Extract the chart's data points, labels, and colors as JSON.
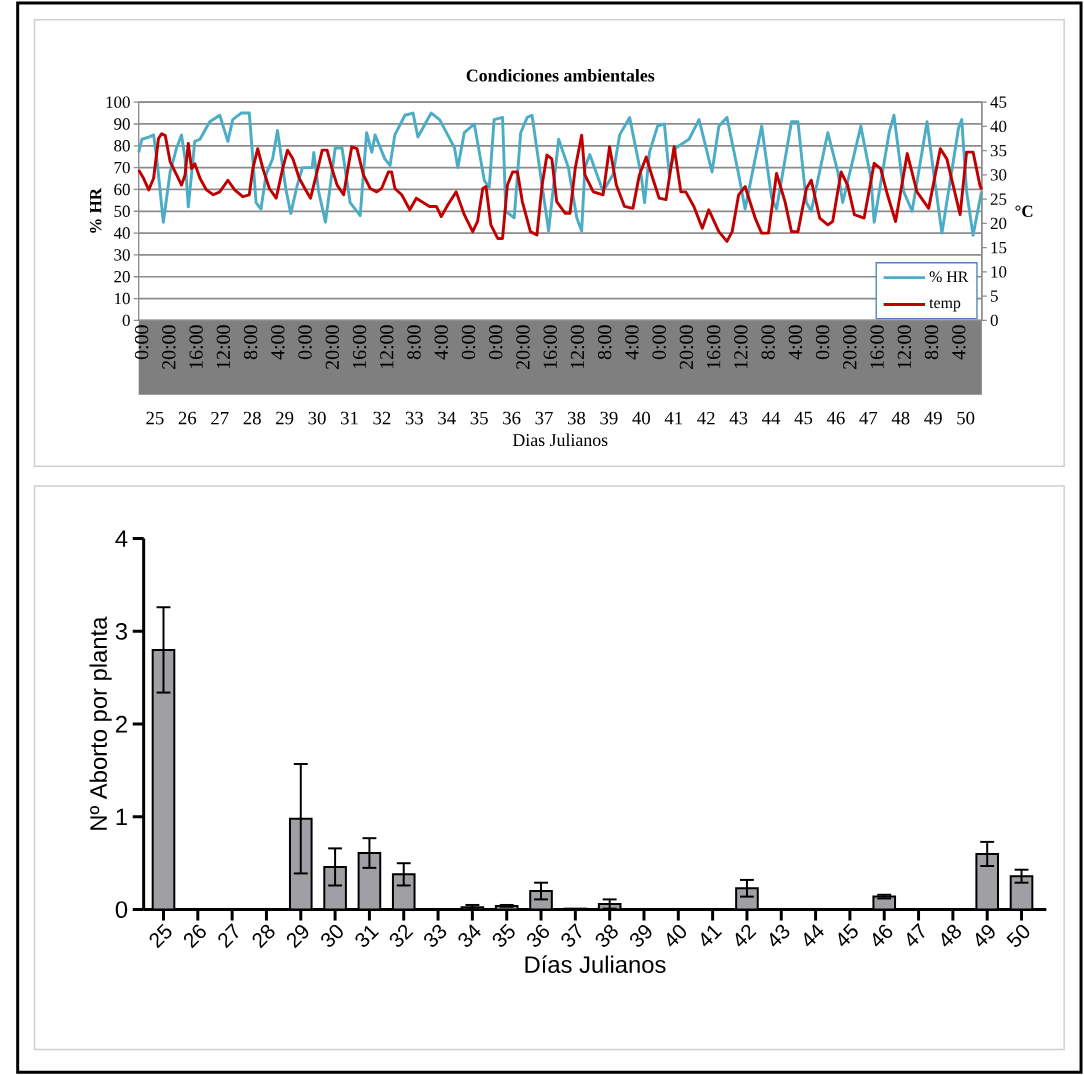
{
  "chart_data": [
    {
      "type": "line",
      "title": "Condiciones ambientales",
      "xlabel": "Dias Julianos",
      "ylabel": "% HR",
      "y2label": "°C",
      "xlim": [
        24.5,
        50.5
      ],
      "xticks": [
        25,
        26,
        27,
        28,
        29,
        30,
        31,
        32,
        33,
        34,
        35,
        36,
        37,
        38,
        39,
        40,
        41,
        42,
        43,
        44,
        45,
        46,
        47,
        48,
        49,
        50
      ],
      "annotations": [
        "0:00",
        "20:00",
        "16:00",
        "12:00",
        "8:00",
        "4:00",
        "0:00",
        "20:00",
        "16:00",
        "12:00",
        "8:00",
        "4:00",
        "0:00",
        "0:00",
        "20:00",
        "16:00",
        "12:00",
        "8:00",
        "4:00",
        "0:00",
        "20:00",
        "16:00",
        "12:00",
        "8:00",
        "4:00",
        "0:00",
        "20:00",
        "16:00",
        "12:00",
        "8:00",
        "4:00"
      ],
      "ylim": [
        0,
        100
      ],
      "yticks": [
        0,
        10,
        20,
        30,
        40,
        50,
        60,
        70,
        80,
        90,
        100
      ],
      "y2lim": [
        0,
        45
      ],
      "y2ticks": [
        0,
        5,
        10,
        15,
        20,
        25,
        30,
        35,
        40,
        45
      ],
      "grid": "y",
      "legend": "bottom right",
      "series": [
        {
          "name": "% HR",
          "color": "#4bacc6",
          "x": [
            24.5,
            24.6,
            24.81,
            24.96,
            25.06,
            25.26,
            25.47,
            25.67,
            25.82,
            25.93,
            26.03,
            26.23,
            26.39,
            26.69,
            27.0,
            27.25,
            27.4,
            27.66,
            27.91,
            28.02,
            28.12,
            28.27,
            28.43,
            28.63,
            28.78,
            29.04,
            29.19,
            29.39,
            29.55,
            29.85,
            29.9,
            30.05,
            30.26,
            30.56,
            30.77,
            31.02,
            31.33,
            31.53,
            31.69,
            31.79,
            32.09,
            32.25,
            32.4,
            32.71,
            32.96,
            33.11,
            33.52,
            33.78,
            34.03,
            34.24,
            34.34,
            34.54,
            34.85,
            35.16,
            35.31,
            35.46,
            35.72,
            35.82,
            36.08,
            36.28,
            36.48,
            36.63,
            36.89,
            37.14,
            37.45,
            37.75,
            38.01,
            38.16,
            38.26,
            38.41,
            38.82,
            39.13,
            39.33,
            39.64,
            39.99,
            40.1,
            40.25,
            40.5,
            40.71,
            40.86,
            41.06,
            41.47,
            41.78,
            41.98,
            42.18,
            42.39,
            42.64,
            43.0,
            43.2,
            43.71,
            44.02,
            44.17,
            44.63,
            44.83,
            45.09,
            45.24,
            45.75,
            46.06,
            46.21,
            46.77,
            47.08,
            47.18,
            47.64,
            47.79,
            48.09,
            48.35,
            48.81,
            49.01,
            49.27,
            49.78,
            49.88,
            50.03,
            50.23,
            50.49
          ],
          "values": [
            77,
            83,
            84,
            85,
            74,
            45,
            68,
            79,
            85,
            74,
            52,
            82,
            83,
            91,
            94,
            82,
            92,
            95,
            95,
            74,
            54,
            51,
            67,
            74,
            87,
            60,
            49,
            62,
            70,
            70,
            77,
            59,
            45,
            79,
            79,
            54,
            48,
            86,
            77,
            85,
            74,
            71,
            85,
            94,
            95,
            84,
            95,
            92,
            85,
            79,
            70,
            86,
            90,
            64,
            61,
            92,
            93,
            50,
            47,
            86,
            93,
            94,
            67,
            41,
            83,
            70,
            47,
            41,
            70,
            76,
            59,
            67,
            85,
            93,
            67,
            54,
            77,
            89,
            90,
            67,
            79,
            83,
            92,
            80,
            68,
            89,
            93,
            67,
            51,
            89,
            56,
            51,
            91,
            91,
            54,
            50,
            86,
            68,
            54,
            89,
            65,
            45,
            86,
            94,
            59,
            50,
            91,
            68,
            40,
            88,
            92,
            59,
            39,
            59
          ]
        },
        {
          "name": "temp",
          "color": "#c00000",
          "axis": "y2",
          "x": [
            24.5,
            24.65,
            24.81,
            24.96,
            25.11,
            25.21,
            25.32,
            25.47,
            25.67,
            25.82,
            25.93,
            26.03,
            26.13,
            26.23,
            26.39,
            26.59,
            26.8,
            27.0,
            27.25,
            27.46,
            27.71,
            27.91,
            28.02,
            28.17,
            28.33,
            28.53,
            28.74,
            28.94,
            29.09,
            29.25,
            29.45,
            29.65,
            29.8,
            29.95,
            30.16,
            30.31,
            30.46,
            30.62,
            30.82,
            30.97,
            31.07,
            31.23,
            31.43,
            31.64,
            31.84,
            31.99,
            32.2,
            32.3,
            32.4,
            32.61,
            32.86,
            33.06,
            33.22,
            33.47,
            33.68,
            33.83,
            34.03,
            34.29,
            34.54,
            34.8,
            34.95,
            35.11,
            35.21,
            35.36,
            35.57,
            35.72,
            35.87,
            36.03,
            36.18,
            36.33,
            36.58,
            36.78,
            36.94,
            37.09,
            37.24,
            37.39,
            37.65,
            37.8,
            37.96,
            38.16,
            38.26,
            38.52,
            38.82,
            39.02,
            39.23,
            39.48,
            39.74,
            39.94,
            40.15,
            40.35,
            40.55,
            40.76,
            41.01,
            41.22,
            41.37,
            41.62,
            41.88,
            42.08,
            42.39,
            42.64,
            42.8,
            43.0,
            43.2,
            43.51,
            43.71,
            43.92,
            44.17,
            44.43,
            44.63,
            44.83,
            45.09,
            45.24,
            45.5,
            45.75,
            45.9,
            46.16,
            46.36,
            46.57,
            46.87,
            47.18,
            47.38,
            47.59,
            47.84,
            48.2,
            48.5,
            48.86,
            49.22,
            49.42,
            49.83,
            50.03,
            50.23,
            50.44,
            50.49
          ],
          "values": [
            31.0,
            29.3,
            26.9,
            29.3,
            37.5,
            38.5,
            38.1,
            32.7,
            30.0,
            27.9,
            30.0,
            36.5,
            31.3,
            32.3,
            29.3,
            26.9,
            25.9,
            26.5,
            28.9,
            26.9,
            25.5,
            25.9,
            31.3,
            35.4,
            31.3,
            27.2,
            25.2,
            31.3,
            35.1,
            33.4,
            29.3,
            26.9,
            25.2,
            29.3,
            35.1,
            35.1,
            31.3,
            27.9,
            25.9,
            32.0,
            35.8,
            35.4,
            30.0,
            27.2,
            26.5,
            27.2,
            30.6,
            30.6,
            27.2,
            25.9,
            22.8,
            25.2,
            24.5,
            23.5,
            23.5,
            21.4,
            23.8,
            26.5,
            21.8,
            18.3,
            20.4,
            27.2,
            27.6,
            19.7,
            16.9,
            16.9,
            27.9,
            30.6,
            30.6,
            24.5,
            18.3,
            17.6,
            27.9,
            34.1,
            33.3,
            24.5,
            22.1,
            22.1,
            31.3,
            38.2,
            30.0,
            26.5,
            25.9,
            35.8,
            27.9,
            23.5,
            23.1,
            30.0,
            33.7,
            29.3,
            25.2,
            24.9,
            35.8,
            26.5,
            26.5,
            23.5,
            19.0,
            22.8,
            18.3,
            16.3,
            18.3,
            25.9,
            27.6,
            21.1,
            18.0,
            18.0,
            30.3,
            24.5,
            18.3,
            18.3,
            27.2,
            28.9,
            21.1,
            19.7,
            20.4,
            30.6,
            27.9,
            21.8,
            21.1,
            32.4,
            31.3,
            25.9,
            20.4,
            34.4,
            26.5,
            23.1,
            35.4,
            33.3,
            21.8,
            34.7,
            34.7,
            27.9,
            27.0
          ]
        }
      ]
    },
    {
      "type": "bar",
      "xlabel": "Días Julianos",
      "ylabel": "Nº Aborto por planta",
      "categories": [
        "25",
        "26",
        "27",
        "28",
        "29",
        "30",
        "31",
        "32",
        "33",
        "34",
        "35",
        "36",
        "37",
        "38",
        "39",
        "40",
        "41",
        "42",
        "43",
        "44",
        "45",
        "46",
        "47",
        "48",
        "49",
        "50"
      ],
      "values": [
        2.8,
        0,
        0,
        0,
        0.98,
        0.46,
        0.61,
        0.38,
        0,
        0.025,
        0.04,
        0.2,
        0.01,
        0.06,
        0,
        0,
        0,
        0.23,
        0,
        0,
        0,
        0.14,
        0,
        0,
        0.6,
        0.36
      ],
      "errors": [
        0.46,
        null,
        null,
        null,
        0.59,
        0.2,
        0.16,
        0.12,
        null,
        0.025,
        0.01,
        0.09,
        null,
        0.05,
        null,
        null,
        null,
        0.09,
        null,
        null,
        null,
        0.02,
        null,
        null,
        0.13,
        0.07
      ],
      "color": "#a0a0a4",
      "ylim": [
        0,
        4
      ],
      "yticks": [
        0,
        1,
        2,
        3,
        4
      ]
    }
  ]
}
